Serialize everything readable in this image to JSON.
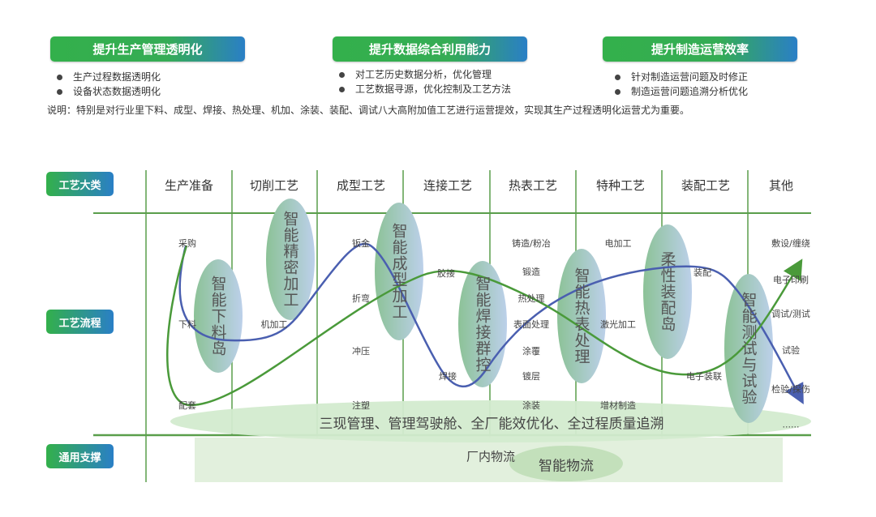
{
  "goals": [
    {
      "title": "提升生产管理透明化",
      "items": [
        "生产过程数据透明化",
        "设备状态数据透明化"
      ]
    },
    {
      "title": "提升数据综合利用能力",
      "items": [
        "对工艺历史数据分析，优化管理",
        "工艺数据寻源，优化控制及工艺方法"
      ]
    },
    {
      "title": "提升制造运营效率",
      "items": [
        "针对制造运营问题及时修正",
        "制造运营问题追溯分析优化"
      ]
    }
  ],
  "note": "说明：特别是对行业里下料、成型、焊接、热处理、机加、涂装、装配、调试八大高附加值工艺进行运营提效，实现其生产过程透明化运营尤为重要。",
  "row_labels": {
    "category": "工艺大类",
    "process": "工艺流程",
    "support": "通用支撑"
  },
  "categories": [
    "生产准备",
    "切削工艺",
    "成型工艺",
    "连接工艺",
    "热表工艺",
    "特种工艺",
    "装配工艺",
    "其他"
  ],
  "processes": {
    "prep": [
      "采购",
      "下料",
      "配套"
    ],
    "cutting": [
      "机加工"
    ],
    "forming": [
      "钣金",
      "折弯",
      "冲压",
      "注塑"
    ],
    "joining": [
      "胶接",
      "焊接"
    ],
    "surface": [
      "铸造/粉冶",
      "锻造",
      "热处理",
      "表面处理",
      "涂覆",
      "镀层",
      "涂装"
    ],
    "special": [
      "电加工",
      "激光加工",
      "增材制造"
    ],
    "assembly": [
      "装配",
      "电子装联"
    ],
    "other": [
      "敷设/缠绕",
      "电子印刷",
      "调试/测试",
      "试验",
      "检验/探伤",
      "......"
    ]
  },
  "smart_units": [
    "智能下料岛",
    "智能精密加工",
    "智能成型加工",
    "智能焊接群控",
    "智能热表处理",
    "柔性装配岛",
    "智能测试与试验"
  ],
  "management": "三现管理、管理驾驶舱、全厂能效优化、全过程质量追溯",
  "support": {
    "logistics": "厂内物流",
    "smart_logistics": "智能物流"
  },
  "colors": {
    "grid": "#5a9e4b",
    "blue_curve": "#4a5fb0",
    "green_curve": "#4a9a3a",
    "ellipse_green": "#8fc49a",
    "ellipse_blue": "#b7cde6"
  }
}
